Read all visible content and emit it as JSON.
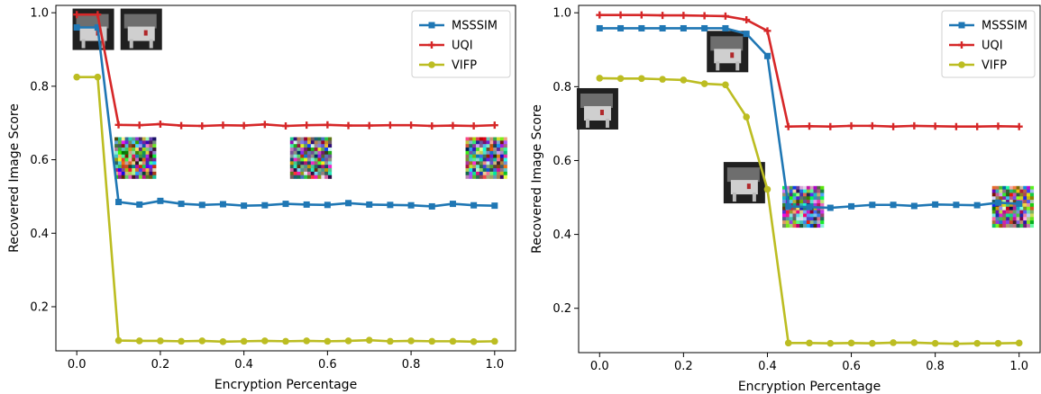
{
  "chart_data": [
    {
      "type": "line",
      "xlabel": "Encryption Percentage",
      "ylabel": "Recovered Image Score",
      "xlim": [
        -0.05,
        1.05
      ],
      "ylim": [
        0.08,
        1.02
      ],
      "xticks": [
        0.0,
        0.2,
        0.4,
        0.6,
        0.8,
        1.0
      ],
      "xtick_labels": [
        "0.0",
        "0.2",
        "0.4",
        "0.6",
        "0.8",
        "1.0"
      ],
      "yticks": [
        0.2,
        0.4,
        0.6,
        0.8,
        1.0
      ],
      "ytick_labels": [
        "0.2",
        "0.4",
        "0.6",
        "0.8",
        "1.0"
      ],
      "grid": false,
      "legend": "top-right",
      "x": [
        0.0,
        0.05,
        0.1,
        0.15,
        0.2,
        0.25,
        0.3,
        0.35,
        0.4,
        0.45,
        0.5,
        0.55,
        0.6,
        0.65,
        0.7,
        0.75,
        0.8,
        0.85,
        0.9,
        0.95,
        1.0
      ],
      "series": [
        {
          "name": "MSSSIM",
          "color": "#1f77b4",
          "marker": "square",
          "values": [
            0.96,
            0.96,
            0.485,
            0.478,
            0.488,
            0.48,
            0.477,
            0.479,
            0.475,
            0.476,
            0.48,
            0.478,
            0.477,
            0.482,
            0.478,
            0.477,
            0.476,
            0.473,
            0.48,
            0.476,
            0.475
          ]
        },
        {
          "name": "UQI",
          "color": "#d62728",
          "marker": "plus",
          "values": [
            0.995,
            0.995,
            0.695,
            0.694,
            0.697,
            0.693,
            0.692,
            0.694,
            0.693,
            0.696,
            0.692,
            0.694,
            0.695,
            0.693,
            0.693,
            0.694,
            0.694,
            0.692,
            0.693,
            0.692,
            0.694
          ]
        },
        {
          "name": "VIFP",
          "color": "#bcbd22",
          "marker": "circle",
          "values": [
            0.825,
            0.825,
            0.108,
            0.107,
            0.107,
            0.106,
            0.107,
            0.105,
            0.106,
            0.107,
            0.106,
            0.107,
            0.106,
            0.107,
            0.109,
            0.106,
            0.107,
            0.106,
            0.106,
            0.105,
            0.106
          ]
        }
      ],
      "thumbnails": [
        {
          "kind": "furniture",
          "x": 0.1
        },
        {
          "kind": "furniture",
          "x": 0.15
        },
        {
          "kind": "noise",
          "x": 0.14
        },
        {
          "kind": "noise",
          "x": 0.56
        },
        {
          "kind": "noise",
          "x": 0.98
        }
      ]
    },
    {
      "type": "line",
      "xlabel": "Encryption Percentage",
      "ylabel": "Recovered Image Score",
      "xlim": [
        -0.05,
        1.05
      ],
      "ylim": [
        0.08,
        1.02
      ],
      "xticks": [
        0.0,
        0.2,
        0.4,
        0.6,
        0.8,
        1.0
      ],
      "xtick_labels": [
        "0.0",
        "0.2",
        "0.4",
        "0.6",
        "0.8",
        "1.0"
      ],
      "yticks": [
        0.2,
        0.4,
        0.6,
        0.8,
        1.0
      ],
      "ytick_labels": [
        "0.2",
        "0.4",
        "0.6",
        "0.8",
        "1.0"
      ],
      "grid": false,
      "legend": "top-right",
      "x": [
        0.0,
        0.05,
        0.1,
        0.15,
        0.2,
        0.25,
        0.3,
        0.35,
        0.4,
        0.45,
        0.5,
        0.55,
        0.6,
        0.65,
        0.7,
        0.75,
        0.8,
        0.85,
        0.9,
        0.95,
        1.0
      ],
      "series": [
        {
          "name": "MSSSIM",
          "color": "#1f77b4",
          "marker": "square",
          "values": [
            0.958,
            0.958,
            0.958,
            0.958,
            0.958,
            0.958,
            0.958,
            0.943,
            0.883,
            0.476,
            0.474,
            0.472,
            0.476,
            0.48,
            0.48,
            0.477,
            0.481,
            0.48,
            0.479,
            0.486,
            0.483
          ]
        },
        {
          "name": "UQI",
          "color": "#d62728",
          "marker": "plus",
          "values": [
            0.994,
            0.994,
            0.994,
            0.993,
            0.993,
            0.992,
            0.991,
            0.981,
            0.951,
            0.692,
            0.693,
            0.692,
            0.694,
            0.694,
            0.692,
            0.694,
            0.693,
            0.692,
            0.692,
            0.693,
            0.692
          ]
        },
        {
          "name": "VIFP",
          "color": "#bcbd22",
          "marker": "circle",
          "values": [
            0.823,
            0.822,
            0.822,
            0.82,
            0.818,
            0.808,
            0.805,
            0.718,
            0.522,
            0.106,
            0.106,
            0.105,
            0.106,
            0.105,
            0.107,
            0.107,
            0.105,
            0.104,
            0.105,
            0.105,
            0.106
          ]
        }
      ],
      "thumbnails": [
        {
          "kind": "furniture",
          "x": -0.005
        },
        {
          "kind": "furniture",
          "x": 0.305
        },
        {
          "kind": "furniture",
          "x": 0.345
        },
        {
          "kind": "noise",
          "x": 0.485
        },
        {
          "kind": "noise",
          "x": 0.985
        }
      ]
    }
  ]
}
